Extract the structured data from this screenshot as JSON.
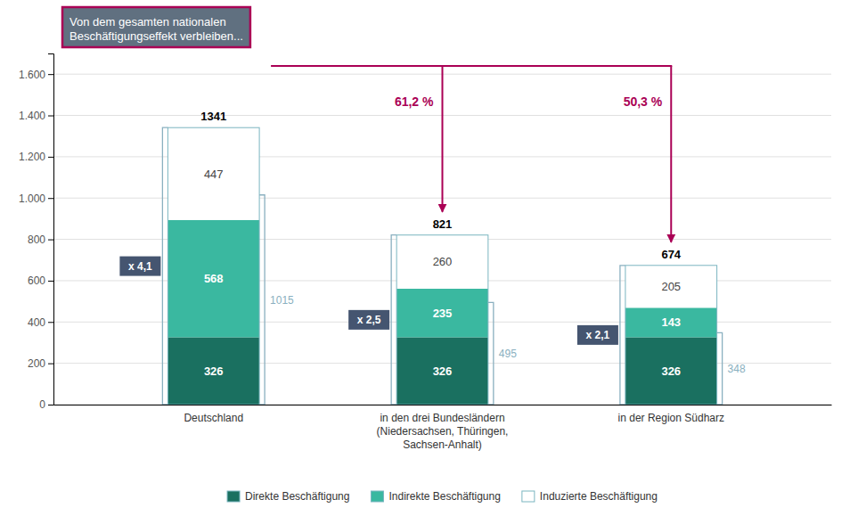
{
  "chart_data": {
    "type": "bar",
    "stacked": true,
    "categories": [
      "Deutschland",
      "in den drei Bundesländern\n(Niedersachsen, Thüringen,\nSachsen-Anhalt)",
      "in der Region Südharz"
    ],
    "series": [
      {
        "name": "Direkte Beschäftigung",
        "color": "#1a7060",
        "values": [
          326,
          326,
          326
        ]
      },
      {
        "name": "Indirekte Beschäftigung",
        "color": "#3ab8a0",
        "values": [
          568,
          235,
          143
        ]
      },
      {
        "name": "Induzierte Beschäftigung",
        "color": "#ffffff",
        "values": [
          447,
          260,
          205
        ]
      }
    ],
    "totals": [
      1341,
      821,
      674
    ],
    "bracket_values": [
      1015,
      495,
      348
    ],
    "multipliers": [
      "x 4,1",
      "x 2,5",
      "x 2,1"
    ],
    "percent_labels": [
      "61,2 %",
      "50,3 %"
    ],
    "annotation": "Von dem gesamten nationalen\nBeschäftigungseffekt verbleiben...",
    "ylim": [
      0,
      1700
    ],
    "yticks": [
      0,
      200,
      400,
      600,
      800,
      {
        "value": 1000,
        "label": "1.000"
      },
      {
        "value": 1200,
        "label": "1.200"
      },
      {
        "value": 1400,
        "label": "1.400"
      },
      {
        "value": 1600,
        "label": "1.600"
      }
    ],
    "grid": true,
    "legend": "bottom",
    "data_labels": true
  }
}
